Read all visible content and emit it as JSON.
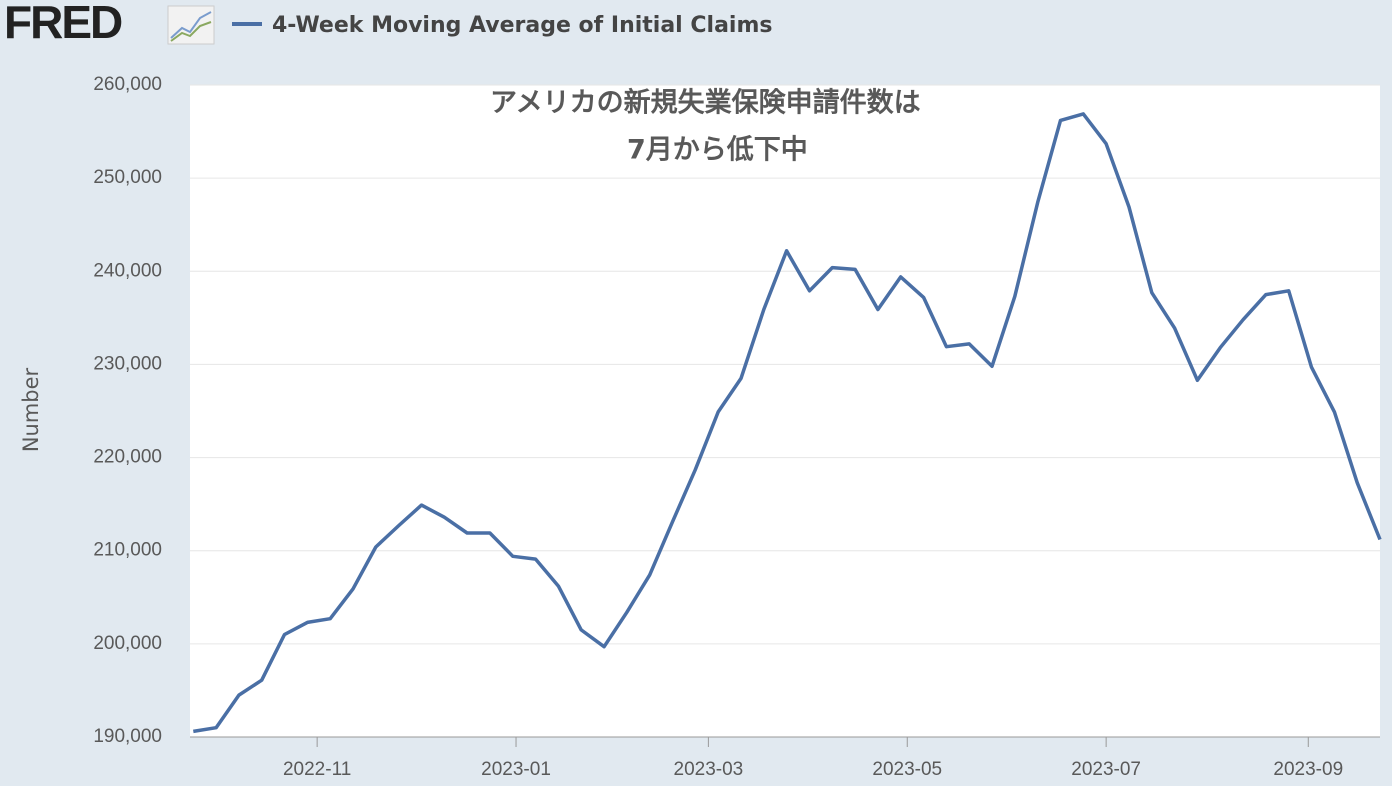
{
  "logo": "FRED",
  "chart_data": {
    "type": "line",
    "title": "アメリカの新規失業保険申請件数は",
    "subtitle": "7月から低下中",
    "ylabel": "Number",
    "x": [
      "2022-09-24",
      "2022-10-01",
      "2022-10-08",
      "2022-10-15",
      "2022-10-22",
      "2022-10-29",
      "2022-11-05",
      "2022-11-12",
      "2022-11-19",
      "2022-11-26",
      "2022-12-03",
      "2022-12-10",
      "2022-12-17",
      "2022-12-24",
      "2022-12-31",
      "2023-01-07",
      "2023-01-14",
      "2023-01-21",
      "2023-01-28",
      "2023-02-04",
      "2023-02-11",
      "2023-02-18",
      "2023-02-25",
      "2023-03-04",
      "2023-03-11",
      "2023-03-18",
      "2023-03-25",
      "2023-04-01",
      "2023-04-08",
      "2023-04-15",
      "2023-04-22",
      "2023-04-29",
      "2023-05-06",
      "2023-05-13",
      "2023-05-20",
      "2023-05-27",
      "2023-06-03",
      "2023-06-10",
      "2023-06-17",
      "2023-06-24",
      "2023-07-01",
      "2023-07-08",
      "2023-07-15",
      "2023-07-22",
      "2023-07-29",
      "2023-08-05",
      "2023-08-12",
      "2023-08-19",
      "2023-08-26",
      "2023-09-02",
      "2023-09-09",
      "2023-09-16",
      "2023-09-23"
    ],
    "series": [
      {
        "name": "4-Week Moving Average of Initial Claims",
        "color": "#4a6fa5",
        "values": [
          190600,
          191000,
          194500,
          196100,
          201000,
          202300,
          202700,
          205900,
          210400,
          212700,
          214900,
          213600,
          211900,
          211900,
          209400,
          209100,
          206200,
          201500,
          199700,
          203400,
          207400,
          213100,
          218700,
          224900,
          228500,
          235900,
          242200,
          237900,
          240400,
          240200,
          235900,
          239400,
          237200,
          231900,
          232200,
          229800,
          237300,
          247400,
          256200,
          256900,
          253700,
          246900,
          237700,
          233900,
          228300,
          231800,
          234800,
          237500,
          237900,
          229700,
          224900,
          217300,
          211200
        ]
      }
    ],
    "xlim": [
      "2022-09-23",
      "2023-09-23"
    ],
    "xticks": [
      {
        "value": "2022-11-01",
        "label": "2022-11"
      },
      {
        "value": "2023-01-01",
        "label": "2023-01"
      },
      {
        "value": "2023-03-01",
        "label": "2023-03"
      },
      {
        "value": "2023-05-01",
        "label": "2023-05"
      },
      {
        "value": "2023-07-01",
        "label": "2023-07"
      },
      {
        "value": "2023-09-01",
        "label": "2023-09"
      }
    ],
    "ylim": [
      190000,
      260000
    ],
    "yticks": [
      {
        "value": 190000,
        "label": "190,000"
      },
      {
        "value": 200000,
        "label": "200,000"
      },
      {
        "value": 210000,
        "label": "210,000"
      },
      {
        "value": 220000,
        "label": "220,000"
      },
      {
        "value": 230000,
        "label": "230,000"
      },
      {
        "value": 240000,
        "label": "240,000"
      },
      {
        "value": 250000,
        "label": "250,000"
      },
      {
        "value": 260000,
        "label": "260,000"
      }
    ],
    "grid": true
  }
}
